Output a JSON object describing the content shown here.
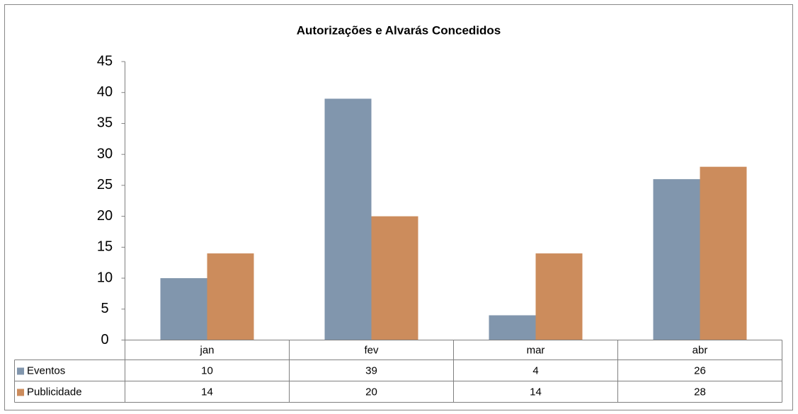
{
  "chart_data": {
    "type": "bar",
    "title": "Autorizações e Alvarás Concedidos",
    "categories": [
      "jan",
      "fev",
      "mar",
      "abr"
    ],
    "series": [
      {
        "name": "Eventos",
        "color": "#8196ad",
        "values": [
          10,
          39,
          4,
          26
        ]
      },
      {
        "name": "Publicidade",
        "color": "#cc8c5c",
        "values": [
          14,
          20,
          14,
          28
        ]
      }
    ],
    "ylim": [
      0,
      45
    ],
    "yticks": [
      0,
      5,
      10,
      15,
      20,
      25,
      30,
      35,
      40,
      45
    ],
    "grid": false
  }
}
